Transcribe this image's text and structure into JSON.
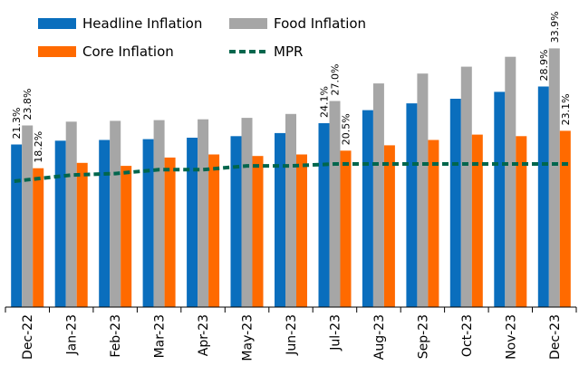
{
  "chart_data": {
    "type": "bar",
    "categories": [
      "Dec-22",
      "Jan-23",
      "Feb-23",
      "Mar-23",
      "Apr-23",
      "May-23",
      "Jun-23",
      "Jul-23",
      "Aug-23",
      "Sep-23",
      "Oct-23",
      "Nov-23",
      "Dec-23"
    ],
    "series": [
      {
        "name": "Headline Inflation",
        "color": "#0a6ebd",
        "values": [
          21.3,
          21.8,
          21.9,
          22.0,
          22.2,
          22.4,
          22.8,
          24.1,
          25.8,
          26.7,
          27.3,
          28.2,
          28.9
        ]
      },
      {
        "name": "Food Inflation",
        "color": "#a6a6a6",
        "values": [
          23.8,
          24.3,
          24.4,
          24.5,
          24.6,
          24.8,
          25.3,
          27.0,
          29.3,
          30.6,
          31.5,
          32.8,
          33.9
        ]
      },
      {
        "name": "Core Inflation",
        "color": "#ff6a00",
        "values": [
          18.2,
          18.9,
          18.5,
          19.6,
          20.0,
          19.8,
          20.0,
          20.5,
          21.2,
          21.9,
          22.6,
          22.4,
          23.1
        ]
      }
    ],
    "line_series": {
      "name": "MPR",
      "color": "#00664d",
      "style": "dashed",
      "values": [
        16.5,
        17.3,
        17.5,
        18.0,
        18.0,
        18.5,
        18.5,
        18.75,
        18.75,
        18.75,
        18.75,
        18.75,
        18.75
      ]
    },
    "data_labels": [
      {
        "category": "Dec-22",
        "series": "Headline Inflation",
        "text": "21.3%"
      },
      {
        "category": "Dec-22",
        "series": "Food Inflation",
        "text": "23.8%"
      },
      {
        "category": "Dec-22",
        "series": "Core Inflation",
        "text": "18.2%"
      },
      {
        "category": "Jul-23",
        "series": "Headline Inflation",
        "text": "24.1%"
      },
      {
        "category": "Jul-23",
        "series": "Food Inflation",
        "text": "27.0%"
      },
      {
        "category": "Jul-23",
        "series": "Core Inflation",
        "text": "20.5%"
      },
      {
        "category": "Dec-23",
        "series": "Headline Inflation",
        "text": "28.9%"
      },
      {
        "category": "Dec-23",
        "series": "Food Inflation",
        "text": "33.9%"
      },
      {
        "category": "Dec-23",
        "series": "Core Inflation",
        "text": "23.1%"
      }
    ],
    "ylim": [
      0,
      40
    ],
    "grid": false,
    "legend_position": "top-left",
    "title": "",
    "xlabel": "",
    "ylabel": ""
  }
}
